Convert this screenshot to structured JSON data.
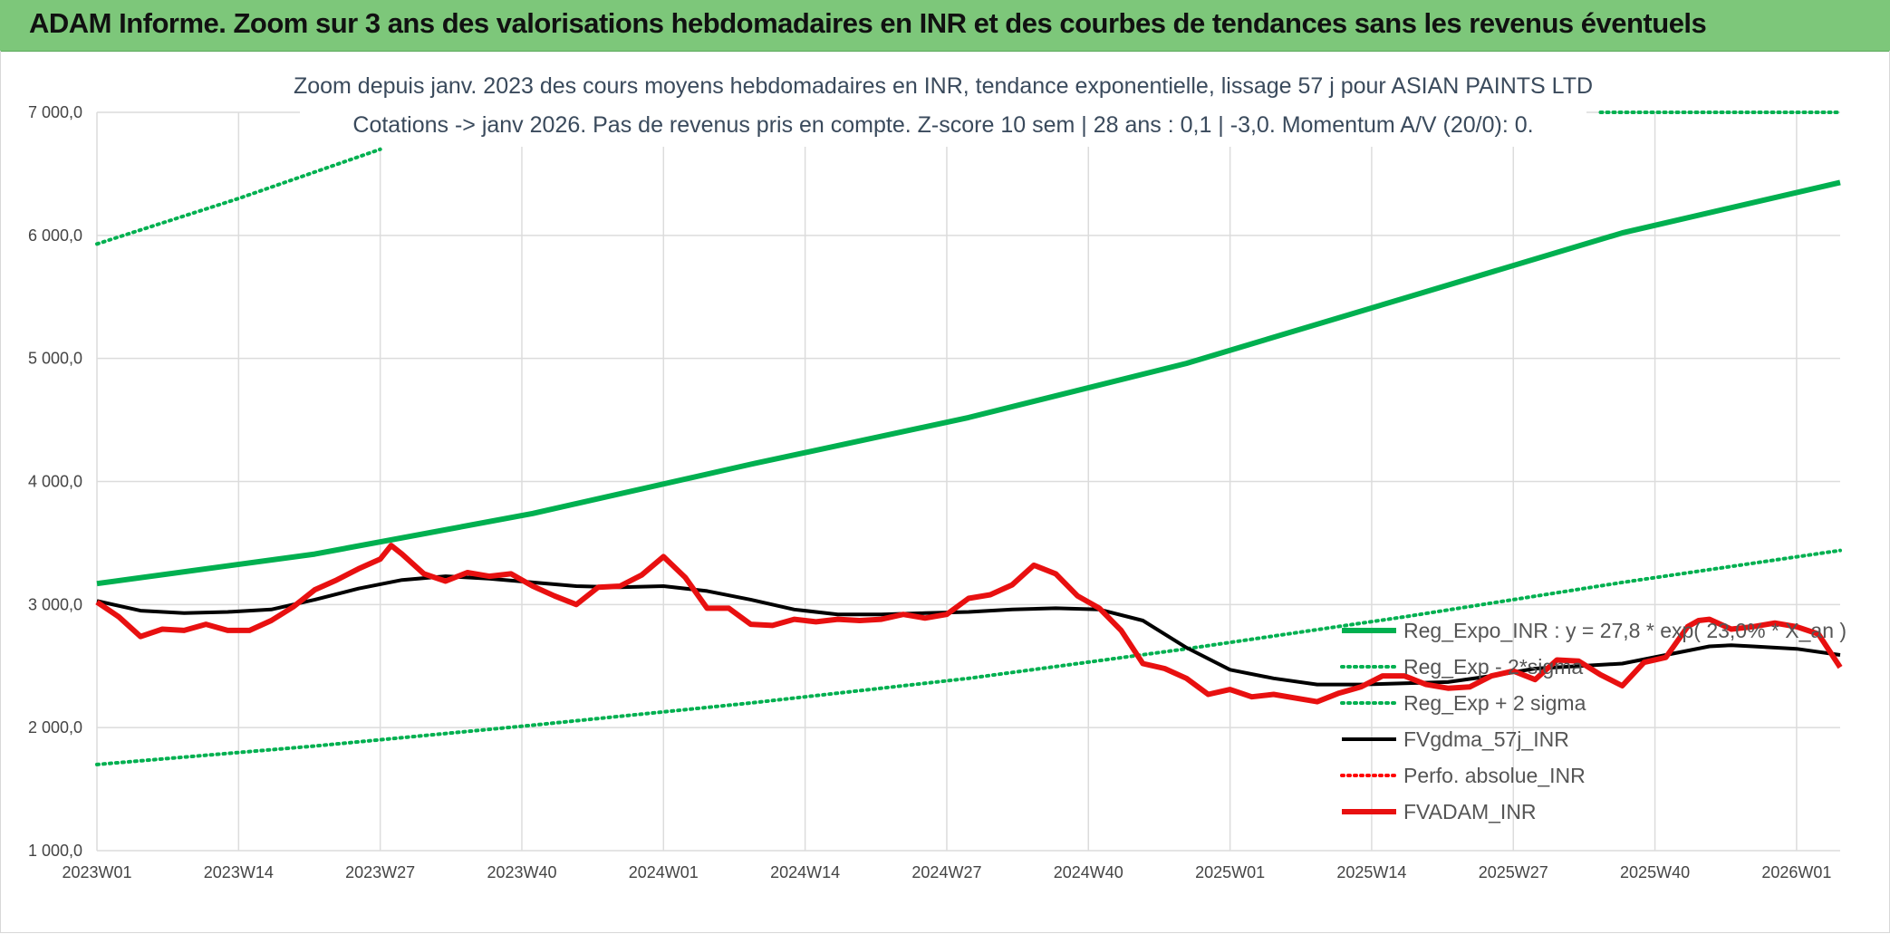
{
  "header": {
    "title": "ADAM Informe. Zoom sur 3 ans des valorisations hebdomadaires en INR et des courbes de tendances sans les revenus éventuels"
  },
  "chart_data": {
    "type": "line",
    "title_line1": "Zoom depuis janv. 2023 des cours moyens hebdomadaires en INR, tendance exponentielle, lissage 57 j pour ASIAN PAINTS LTD",
    "title_line2": "Cotations -> janv 2026. Pas de revenus pris en compte. Z-score 10 sem | 28 ans : 0,1 | -3,0. Momentum A/V (20/0): 0.",
    "ylim": [
      1000,
      7000
    ],
    "y_ticks": [
      1000,
      2000,
      3000,
      4000,
      5000,
      6000,
      7000
    ],
    "y_tick_labels": [
      "1 000,0",
      "2 000,0",
      "3 000,0",
      "4 000,0",
      "5 000,0",
      "6 000,0",
      "7 000,0"
    ],
    "x_range": [
      0,
      160
    ],
    "x_ticks": [
      0,
      13,
      26,
      39,
      52,
      65,
      78,
      91,
      104,
      117,
      130,
      143,
      156
    ],
    "x_tick_labels": [
      "2023W01",
      "2023W14",
      "2023W27",
      "2023W40",
      "2024W01",
      "2024W14",
      "2024W27",
      "2024W40",
      "2025W01",
      "2025W14",
      "2025W27",
      "2025W40",
      "2026W01"
    ],
    "grid": true,
    "legend_position": "bottom-right",
    "series": [
      {
        "name": "Reg_Expo_INR : y = 27,8 * exp( 23,0% * X_an )",
        "color": "#00b050",
        "style": "solid-thick",
        "x": [
          0,
          20,
          40,
          60,
          80,
          100,
          120,
          140,
          160
        ],
        "values": [
          3170,
          3410,
          3740,
          4140,
          4520,
          4960,
          5490,
          6020,
          6430
        ]
      },
      {
        "name": "Reg_Exp - 2*sigma",
        "color": "#00b050",
        "style": "dotted",
        "x": [
          0,
          20,
          40,
          60,
          80,
          100,
          120,
          140,
          160
        ],
        "values": [
          1700,
          1850,
          2020,
          2200,
          2400,
          2640,
          2900,
          3180,
          3440
        ]
      },
      {
        "name": "Reg_Exp + 2 sigma",
        "color": "#00b050",
        "style": "dotted",
        "x": [
          0,
          13,
          26
        ],
        "values": [
          5930,
          6300,
          6700
        ],
        "x2": [
          138,
          160
        ],
        "values2": [
          7000,
          7000
        ]
      },
      {
        "name": "FVgdma_57j_INR",
        "color": "#000000",
        "style": "solid",
        "x": [
          0,
          4,
          8,
          12,
          16,
          20,
          24,
          28,
          32,
          36,
          40,
          44,
          48,
          52,
          56,
          60,
          64,
          68,
          72,
          76,
          80,
          84,
          88,
          92,
          96,
          100,
          104,
          108,
          112,
          116,
          120,
          124,
          128,
          132,
          136,
          140,
          144,
          148,
          150,
          152,
          156,
          160
        ],
        "values": [
          3030,
          2950,
          2930,
          2940,
          2960,
          3040,
          3130,
          3200,
          3230,
          3210,
          3180,
          3150,
          3140,
          3150,
          3110,
          3040,
          2960,
          2920,
          2920,
          2930,
          2940,
          2960,
          2970,
          2960,
          2870,
          2650,
          2470,
          2400,
          2350,
          2350,
          2360,
          2370,
          2420,
          2480,
          2500,
          2520,
          2590,
          2660,
          2670,
          2660,
          2640,
          2590
        ]
      },
      {
        "name": "Perfo. absolue_INR",
        "color": "#ff0000",
        "style": "dotted",
        "x": [],
        "values": []
      },
      {
        "name": "FVADAM_INR",
        "color": "#e81010",
        "style": "solid-thick",
        "x": [
          0,
          2,
          4,
          6,
          8,
          10,
          12,
          14,
          16,
          18,
          20,
          22,
          24,
          26,
          27,
          28,
          30,
          32,
          34,
          36,
          38,
          40,
          42,
          44,
          46,
          48,
          50,
          52,
          54,
          56,
          58,
          60,
          62,
          64,
          66,
          68,
          70,
          72,
          74,
          76,
          78,
          80,
          82,
          84,
          86,
          88,
          90,
          92,
          94,
          96,
          98,
          100,
          102,
          104,
          106,
          108,
          110,
          112,
          114,
          116,
          118,
          120,
          122,
          124,
          126,
          128,
          130,
          132,
          134,
          136,
          138,
          140,
          142,
          144,
          146,
          147,
          148,
          150,
          152,
          154,
          156,
          158,
          160
        ],
        "values": [
          3020,
          2900,
          2740,
          2800,
          2790,
          2840,
          2790,
          2790,
          2870,
          2980,
          3120,
          3200,
          3290,
          3370,
          3480,
          3410,
          3250,
          3190,
          3260,
          3230,
          3250,
          3150,
          3070,
          3000,
          3140,
          3150,
          3240,
          3390,
          3220,
          2970,
          2970,
          2840,
          2830,
          2880,
          2860,
          2880,
          2870,
          2880,
          2920,
          2890,
          2920,
          3050,
          3080,
          3160,
          3320,
          3250,
          3070,
          2970,
          2790,
          2520,
          2480,
          2400,
          2270,
          2310,
          2250,
          2270,
          2240,
          2210,
          2280,
          2330,
          2420,
          2420,
          2350,
          2320,
          2330,
          2420,
          2460,
          2390,
          2550,
          2540,
          2430,
          2340,
          2530,
          2570,
          2820,
          2870,
          2880,
          2800,
          2820,
          2850,
          2820,
          2760,
          2490
        ]
      }
    ]
  }
}
